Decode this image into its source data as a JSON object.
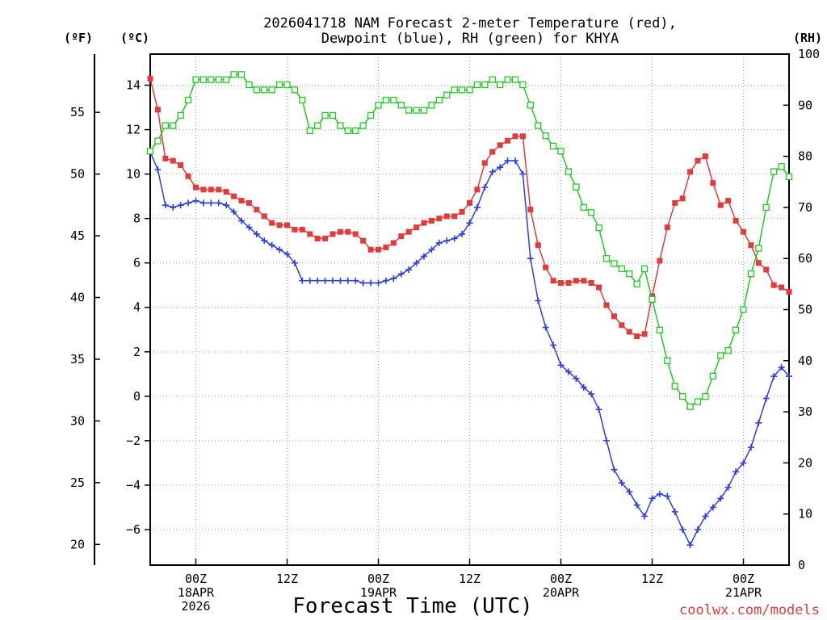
{
  "chart_data": {
    "type": "line",
    "title": [
      "2026041718 NAM Forecast 2-meter Temperature (red),",
      "Dewpoint (blue), RH (green) for KHYA"
    ],
    "xlabel": "Forecast Time (UTC)",
    "credit": "coolwx.com/models",
    "units": {
      "fahrenheit": "(ºF)",
      "celsius": "(ºC)",
      "rh": "(RH)"
    },
    "x_unit": "hours since 2026041718",
    "xlim": [
      0,
      84
    ],
    "x_ticks": [
      {
        "x": 6,
        "lines": [
          "00Z",
          "18APR",
          "2026"
        ]
      },
      {
        "x": 18,
        "lines": [
          "12Z"
        ]
      },
      {
        "x": 30,
        "lines": [
          "00Z",
          "19APR"
        ]
      },
      {
        "x": 42,
        "lines": [
          "12Z"
        ]
      },
      {
        "x": 54,
        "lines": [
          "00Z",
          "20APR"
        ]
      },
      {
        "x": 66,
        "lines": [
          "12Z"
        ]
      },
      {
        "x": 78,
        "lines": [
          "00Z",
          "21APR"
        ]
      }
    ],
    "y_celsius": {
      "lim": [
        -7.6,
        15.4
      ],
      "ticks": [
        -6,
        -4,
        -2,
        0,
        2,
        4,
        6,
        8,
        10,
        12,
        14
      ],
      "labels": [
        "−6",
        "−4",
        "−2",
        "0",
        "2",
        "4",
        "6",
        "8",
        "10",
        "12",
        "14"
      ]
    },
    "y_fahrenheit": {
      "ticks": [
        20,
        25,
        30,
        35,
        40,
        45,
        50,
        55
      ],
      "labels": [
        "20",
        "25",
        "30",
        "35",
        "40",
        "45",
        "50",
        "55"
      ]
    },
    "y_rh": {
      "lim": [
        0,
        100
      ],
      "ticks": [
        0,
        10,
        20,
        30,
        40,
        50,
        60,
        70,
        80,
        90,
        100
      ],
      "labels": [
        "0",
        "10",
        "20",
        "30",
        "40",
        "50",
        "60",
        "70",
        "80",
        "90",
        "100"
      ]
    },
    "series": [
      {
        "name": "2-meter Temperature",
        "unit": "°C",
        "color": "#e23b3b",
        "marker": "filled-square",
        "values": [
          [
            0,
            14.3
          ],
          [
            1,
            12.9
          ],
          [
            2,
            10.7
          ],
          [
            3,
            10.6
          ],
          [
            4,
            10.4
          ],
          [
            5,
            9.9
          ],
          [
            6,
            9.4
          ],
          [
            7,
            9.3
          ],
          [
            8,
            9.3
          ],
          [
            9,
            9.3
          ],
          [
            10,
            9.2
          ],
          [
            11,
            9.0
          ],
          [
            12,
            8.8
          ],
          [
            13,
            8.7
          ],
          [
            14,
            8.4
          ],
          [
            15,
            8.1
          ],
          [
            16,
            7.8
          ],
          [
            17,
            7.7
          ],
          [
            18,
            7.7
          ],
          [
            19,
            7.5
          ],
          [
            20,
            7.5
          ],
          [
            21,
            7.3
          ],
          [
            22,
            7.1
          ],
          [
            23,
            7.1
          ],
          [
            24,
            7.3
          ],
          [
            25,
            7.4
          ],
          [
            26,
            7.4
          ],
          [
            27,
            7.3
          ],
          [
            28,
            7.0
          ],
          [
            29,
            6.6
          ],
          [
            30,
            6.6
          ],
          [
            31,
            6.7
          ],
          [
            32,
            6.9
          ],
          [
            33,
            7.2
          ],
          [
            34,
            7.4
          ],
          [
            35,
            7.6
          ],
          [
            36,
            7.8
          ],
          [
            37,
            7.9
          ],
          [
            38,
            8.0
          ],
          [
            39,
            8.1
          ],
          [
            40,
            8.1
          ],
          [
            41,
            8.3
          ],
          [
            42,
            8.7
          ],
          [
            43,
            9.3
          ],
          [
            44,
            10.5
          ],
          [
            45,
            11.0
          ],
          [
            46,
            11.3
          ],
          [
            47,
            11.5
          ],
          [
            48,
            11.7
          ],
          [
            49,
            11.7
          ],
          [
            50,
            8.4
          ],
          [
            51,
            6.8
          ],
          [
            52,
            5.8
          ],
          [
            53,
            5.2
          ],
          [
            54,
            5.1
          ],
          [
            55,
            5.1
          ],
          [
            56,
            5.2
          ],
          [
            57,
            5.2
          ],
          [
            58,
            5.1
          ],
          [
            59,
            4.9
          ],
          [
            60,
            4.1
          ],
          [
            61,
            3.6
          ],
          [
            62,
            3.2
          ],
          [
            63,
            2.9
          ],
          [
            64,
            2.7
          ],
          [
            65,
            2.8
          ],
          [
            66,
            4.5
          ],
          [
            67,
            6.1
          ],
          [
            68,
            7.6
          ],
          [
            69,
            8.7
          ],
          [
            70,
            8.9
          ],
          [
            71,
            10.1
          ],
          [
            72,
            10.6
          ],
          [
            73,
            10.8
          ],
          [
            74,
            9.6
          ],
          [
            75,
            8.6
          ],
          [
            76,
            8.8
          ],
          [
            77,
            7.9
          ],
          [
            78,
            7.4
          ],
          [
            79,
            6.8
          ],
          [
            80,
            6.0
          ],
          [
            81,
            5.7
          ],
          [
            82,
            5.0
          ],
          [
            83,
            4.9
          ],
          [
            84,
            4.7
          ]
        ]
      },
      {
        "name": "Dewpoint",
        "unit": "°C",
        "color": "#2c3fe0",
        "marker": "plus",
        "values": [
          [
            0,
            11.0
          ],
          [
            1,
            10.2
          ],
          [
            2,
            8.6
          ],
          [
            3,
            8.5
          ],
          [
            4,
            8.6
          ],
          [
            5,
            8.7
          ],
          [
            6,
            8.8
          ],
          [
            7,
            8.7
          ],
          [
            8,
            8.7
          ],
          [
            9,
            8.7
          ],
          [
            10,
            8.6
          ],
          [
            11,
            8.3
          ],
          [
            12,
            7.9
          ],
          [
            13,
            7.6
          ],
          [
            14,
            7.3
          ],
          [
            15,
            7.0
          ],
          [
            16,
            6.8
          ],
          [
            17,
            6.6
          ],
          [
            18,
            6.4
          ],
          [
            19,
            6.0
          ],
          [
            20,
            5.2
          ],
          [
            21,
            5.2
          ],
          [
            22,
            5.2
          ],
          [
            23,
            5.2
          ],
          [
            24,
            5.2
          ],
          [
            25,
            5.2
          ],
          [
            26,
            5.2
          ],
          [
            27,
            5.2
          ],
          [
            28,
            5.1
          ],
          [
            29,
            5.1
          ],
          [
            30,
            5.1
          ],
          [
            31,
            5.2
          ],
          [
            32,
            5.3
          ],
          [
            33,
            5.5
          ],
          [
            34,
            5.7
          ],
          [
            35,
            6.0
          ],
          [
            36,
            6.3
          ],
          [
            37,
            6.6
          ],
          [
            38,
            6.9
          ],
          [
            39,
            7.0
          ],
          [
            40,
            7.1
          ],
          [
            41,
            7.3
          ],
          [
            42,
            7.8
          ],
          [
            43,
            8.5
          ],
          [
            44,
            9.4
          ],
          [
            45,
            10.1
          ],
          [
            46,
            10.3
          ],
          [
            47,
            10.6
          ],
          [
            48,
            10.6
          ],
          [
            49,
            10.0
          ],
          [
            50,
            6.2
          ],
          [
            51,
            4.3
          ],
          [
            52,
            3.1
          ],
          [
            53,
            2.3
          ],
          [
            54,
            1.4
          ],
          [
            55,
            1.1
          ],
          [
            56,
            0.8
          ],
          [
            57,
            0.4
          ],
          [
            58,
            0.1
          ],
          [
            59,
            -0.6
          ],
          [
            60,
            -2.0
          ],
          [
            61,
            -3.3
          ],
          [
            62,
            -3.9
          ],
          [
            63,
            -4.3
          ],
          [
            64,
            -4.9
          ],
          [
            65,
            -5.4
          ],
          [
            66,
            -4.6
          ],
          [
            67,
            -4.4
          ],
          [
            68,
            -4.5
          ],
          [
            69,
            -5.2
          ],
          [
            70,
            -6.0
          ],
          [
            71,
            -6.7
          ],
          [
            72,
            -6.0
          ],
          [
            73,
            -5.4
          ],
          [
            74,
            -5.0
          ],
          [
            75,
            -4.6
          ],
          [
            76,
            -4.1
          ],
          [
            77,
            -3.4
          ],
          [
            78,
            -3.0
          ],
          [
            79,
            -2.3
          ],
          [
            80,
            -1.2
          ],
          [
            81,
            -0.1
          ],
          [
            82,
            0.9
          ],
          [
            83,
            1.3
          ],
          [
            84,
            0.9
          ]
        ]
      },
      {
        "name": "RH",
        "unit": "%",
        "color": "#22c922",
        "marker": "open-square",
        "values": [
          [
            0,
            81
          ],
          [
            1,
            83
          ],
          [
            2,
            86
          ],
          [
            3,
            86
          ],
          [
            4,
            88
          ],
          [
            5,
            91
          ],
          [
            6,
            95
          ],
          [
            7,
            95
          ],
          [
            8,
            95
          ],
          [
            9,
            95
          ],
          [
            10,
            95
          ],
          [
            11,
            96
          ],
          [
            12,
            96
          ],
          [
            13,
            94
          ],
          [
            14,
            93
          ],
          [
            15,
            93
          ],
          [
            16,
            93
          ],
          [
            17,
            94
          ],
          [
            18,
            94
          ],
          [
            19,
            93
          ],
          [
            20,
            91
          ],
          [
            21,
            85
          ],
          [
            22,
            86
          ],
          [
            23,
            88
          ],
          [
            24,
            88
          ],
          [
            25,
            86
          ],
          [
            26,
            85
          ],
          [
            27,
            85
          ],
          [
            28,
            86
          ],
          [
            29,
            88
          ],
          [
            30,
            90
          ],
          [
            31,
            91
          ],
          [
            32,
            91
          ],
          [
            33,
            90
          ],
          [
            34,
            89
          ],
          [
            35,
            89
          ],
          [
            36,
            89
          ],
          [
            37,
            90
          ],
          [
            38,
            91
          ],
          [
            39,
            92
          ],
          [
            40,
            93
          ],
          [
            41,
            93
          ],
          [
            42,
            93
          ],
          [
            43,
            94
          ],
          [
            44,
            94
          ],
          [
            45,
            95
          ],
          [
            46,
            94
          ],
          [
            47,
            95
          ],
          [
            48,
            95
          ],
          [
            49,
            94
          ],
          [
            50,
            90
          ],
          [
            51,
            86
          ],
          [
            52,
            84
          ],
          [
            53,
            82
          ],
          [
            54,
            81
          ],
          [
            55,
            77
          ],
          [
            56,
            74
          ],
          [
            57,
            70
          ],
          [
            58,
            69
          ],
          [
            59,
            66
          ],
          [
            60,
            60
          ],
          [
            61,
            59
          ],
          [
            62,
            58
          ],
          [
            63,
            57
          ],
          [
            64,
            55
          ],
          [
            65,
            58
          ],
          [
            66,
            52
          ],
          [
            67,
            46
          ],
          [
            68,
            40
          ],
          [
            69,
            35
          ],
          [
            70,
            33
          ],
          [
            71,
            31
          ],
          [
            72,
            32
          ],
          [
            73,
            33
          ],
          [
            74,
            37
          ],
          [
            75,
            41
          ],
          [
            76,
            42
          ],
          [
            77,
            46
          ],
          [
            78,
            50
          ],
          [
            79,
            57
          ],
          [
            80,
            62
          ],
          [
            81,
            70
          ],
          [
            82,
            77
          ],
          [
            83,
            78
          ],
          [
            84,
            76
          ]
        ]
      }
    ]
  }
}
